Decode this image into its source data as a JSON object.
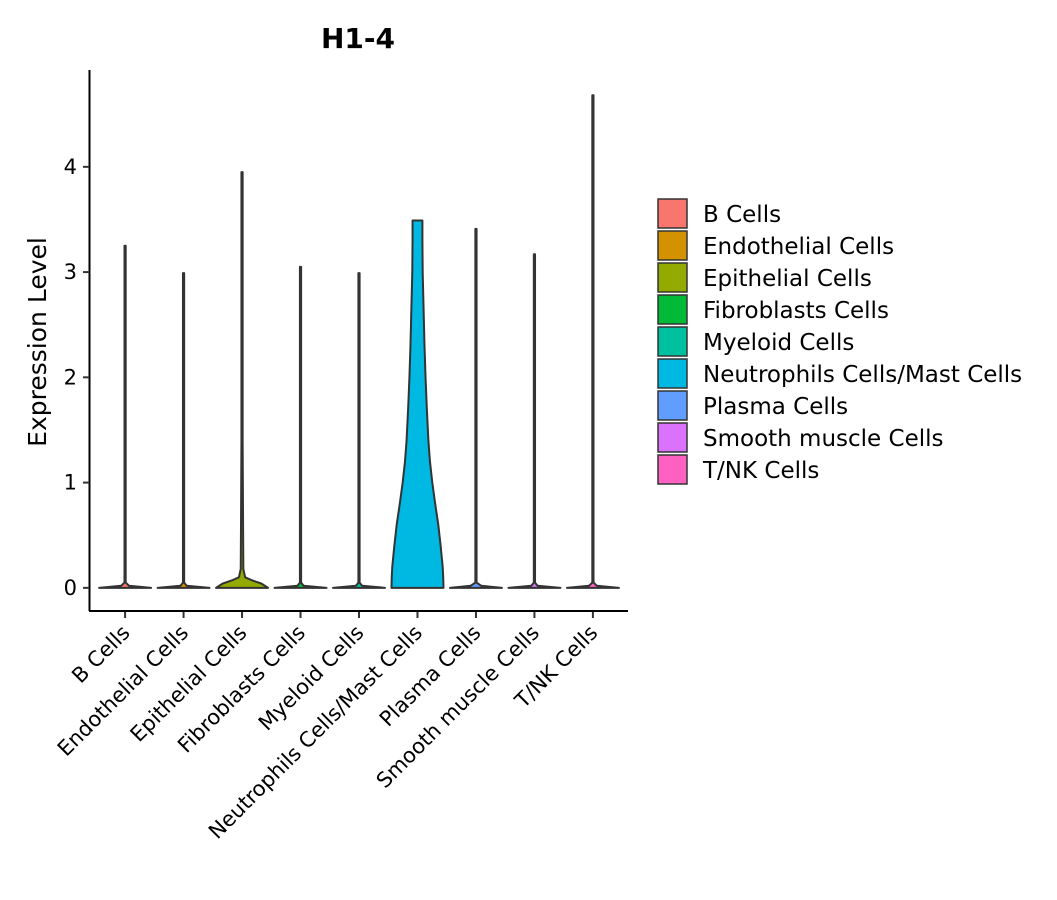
{
  "chart_data": {
    "type": "violin",
    "title": "H1-4",
    "xlabel": "",
    "ylabel": "Expression Level",
    "ylim": [
      -0.22,
      4.92
    ],
    "yticks": [
      0,
      1,
      2,
      3,
      4
    ],
    "ytick_labels": [
      "0",
      "1",
      "2",
      "3",
      "4"
    ],
    "grid": false,
    "legend_position": "right",
    "categories": [
      "B Cells",
      "Endothelial Cells",
      "Epithelial Cells",
      "Fibroblasts Cells",
      "Myeloid Cells",
      "Neutrophils Cells/Mast Cells",
      "Plasma Cells",
      "Smooth muscle Cells",
      "T/NK Cells"
    ],
    "colors": [
      "#F8766D",
      "#D39200",
      "#93AA00",
      "#00BA38",
      "#00C19F",
      "#00B9E3",
      "#619CFF",
      "#DB72FB",
      "#FF61C3"
    ],
    "series": [
      {
        "name": "B Cells",
        "max": 3.25,
        "profile": [
          [
            0,
            1.0
          ],
          [
            0.02,
            0.15
          ],
          [
            0.05,
            0.02
          ],
          [
            3.25,
            0.02
          ]
        ]
      },
      {
        "name": "Endothelial Cells",
        "max": 2.99,
        "profile": [
          [
            0,
            1.0
          ],
          [
            0.02,
            0.12
          ],
          [
            0.05,
            0.02
          ],
          [
            2.99,
            0.02
          ]
        ]
      },
      {
        "name": "Epithelial Cells",
        "max": 3.95,
        "profile": [
          [
            0,
            1.0
          ],
          [
            0.04,
            0.75
          ],
          [
            0.07,
            0.4
          ],
          [
            0.1,
            0.12
          ],
          [
            0.18,
            0.05
          ],
          [
            0.6,
            0.04
          ],
          [
            1.4,
            0.02
          ],
          [
            3.95,
            0.02
          ]
        ]
      },
      {
        "name": "Fibroblasts Cells",
        "max": 3.05,
        "profile": [
          [
            0,
            1.0
          ],
          [
            0.02,
            0.12
          ],
          [
            0.05,
            0.02
          ],
          [
            3.05,
            0.02
          ]
        ]
      },
      {
        "name": "Myeloid Cells",
        "max": 2.99,
        "profile": [
          [
            0,
            1.0
          ],
          [
            0.02,
            0.12
          ],
          [
            0.05,
            0.02
          ],
          [
            2.99,
            0.02
          ]
        ]
      },
      {
        "name": "Neutrophils Cells/Mast Cells",
        "max": 3.49,
        "profile": [
          [
            0,
            1.0
          ],
          [
            0.1,
            0.99
          ],
          [
            0.2,
            0.97
          ],
          [
            0.4,
            0.89
          ],
          [
            0.6,
            0.8
          ],
          [
            0.8,
            0.68
          ],
          [
            1.0,
            0.57
          ],
          [
            1.2,
            0.48
          ],
          [
            1.4,
            0.42
          ],
          [
            1.7,
            0.36
          ],
          [
            2.0,
            0.31
          ],
          [
            2.3,
            0.27
          ],
          [
            2.7,
            0.23
          ],
          [
            3.0,
            0.2
          ],
          [
            3.3,
            0.19
          ],
          [
            3.49,
            0.19
          ]
        ]
      },
      {
        "name": "Plasma Cells",
        "max": 3.41,
        "profile": [
          [
            0,
            1.0
          ],
          [
            0.02,
            0.2
          ],
          [
            0.05,
            0.02
          ],
          [
            3.41,
            0.02
          ]
        ]
      },
      {
        "name": "Smooth muscle Cells",
        "max": 3.17,
        "profile": [
          [
            0,
            1.0
          ],
          [
            0.02,
            0.12
          ],
          [
            0.05,
            0.02
          ],
          [
            3.17,
            0.02
          ]
        ]
      },
      {
        "name": "T/NK Cells",
        "max": 4.68,
        "profile": [
          [
            0,
            1.0
          ],
          [
            0.02,
            0.15
          ],
          [
            0.05,
            0.02
          ],
          [
            4.68,
            0.02
          ]
        ]
      }
    ],
    "legend": {
      "entries": [
        "B Cells",
        "Endothelial Cells",
        "Epithelial Cells",
        "Fibroblasts Cells",
        "Myeloid Cells",
        "Neutrophils Cells/Mast Cells",
        "Plasma Cells",
        "Smooth muscle Cells",
        "T/NK Cells"
      ]
    }
  }
}
